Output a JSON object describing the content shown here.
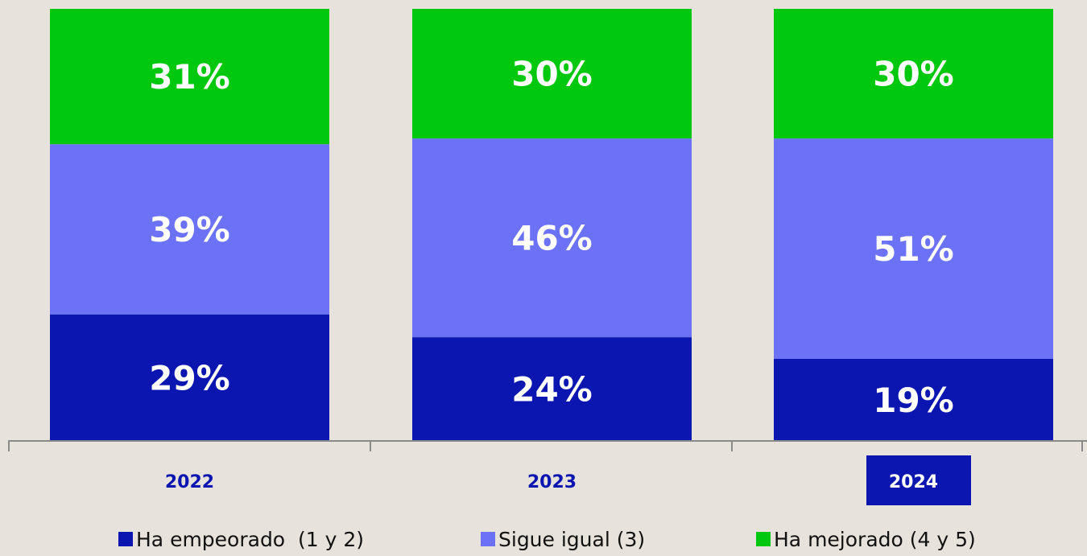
{
  "colors": {
    "background": "#e8e2dd",
    "empeorado": "#0b16b0",
    "igual": "#6b72f5",
    "mejorado": "#00c80e",
    "axis": "#8a8a8a",
    "year_text": "#0b16b0",
    "highlight_text": "#ffffff"
  },
  "chart_data": {
    "type": "bar",
    "stacked": true,
    "categories": [
      "2022",
      "2023",
      "2024"
    ],
    "highlighted_category": "2024",
    "series": [
      {
        "name": "Ha empeorado  (1 y 2)",
        "key": "empeorado",
        "values": [
          29,
          24,
          19
        ],
        "labels": [
          "29%",
          "24%",
          "19%"
        ]
      },
      {
        "name": "Sigue igual (3)",
        "key": "igual",
        "values": [
          39,
          46,
          51
        ],
        "labels": [
          "39%",
          "46%",
          "51%"
        ]
      },
      {
        "name": "Ha mejorado (4 y 5)",
        "key": "mejorado",
        "values": [
          31,
          30,
          30
        ],
        "labels": [
          "31%",
          "30%",
          "30%"
        ]
      }
    ],
    "unit": "%",
    "legend_position": "bottom",
    "grid": false
  }
}
